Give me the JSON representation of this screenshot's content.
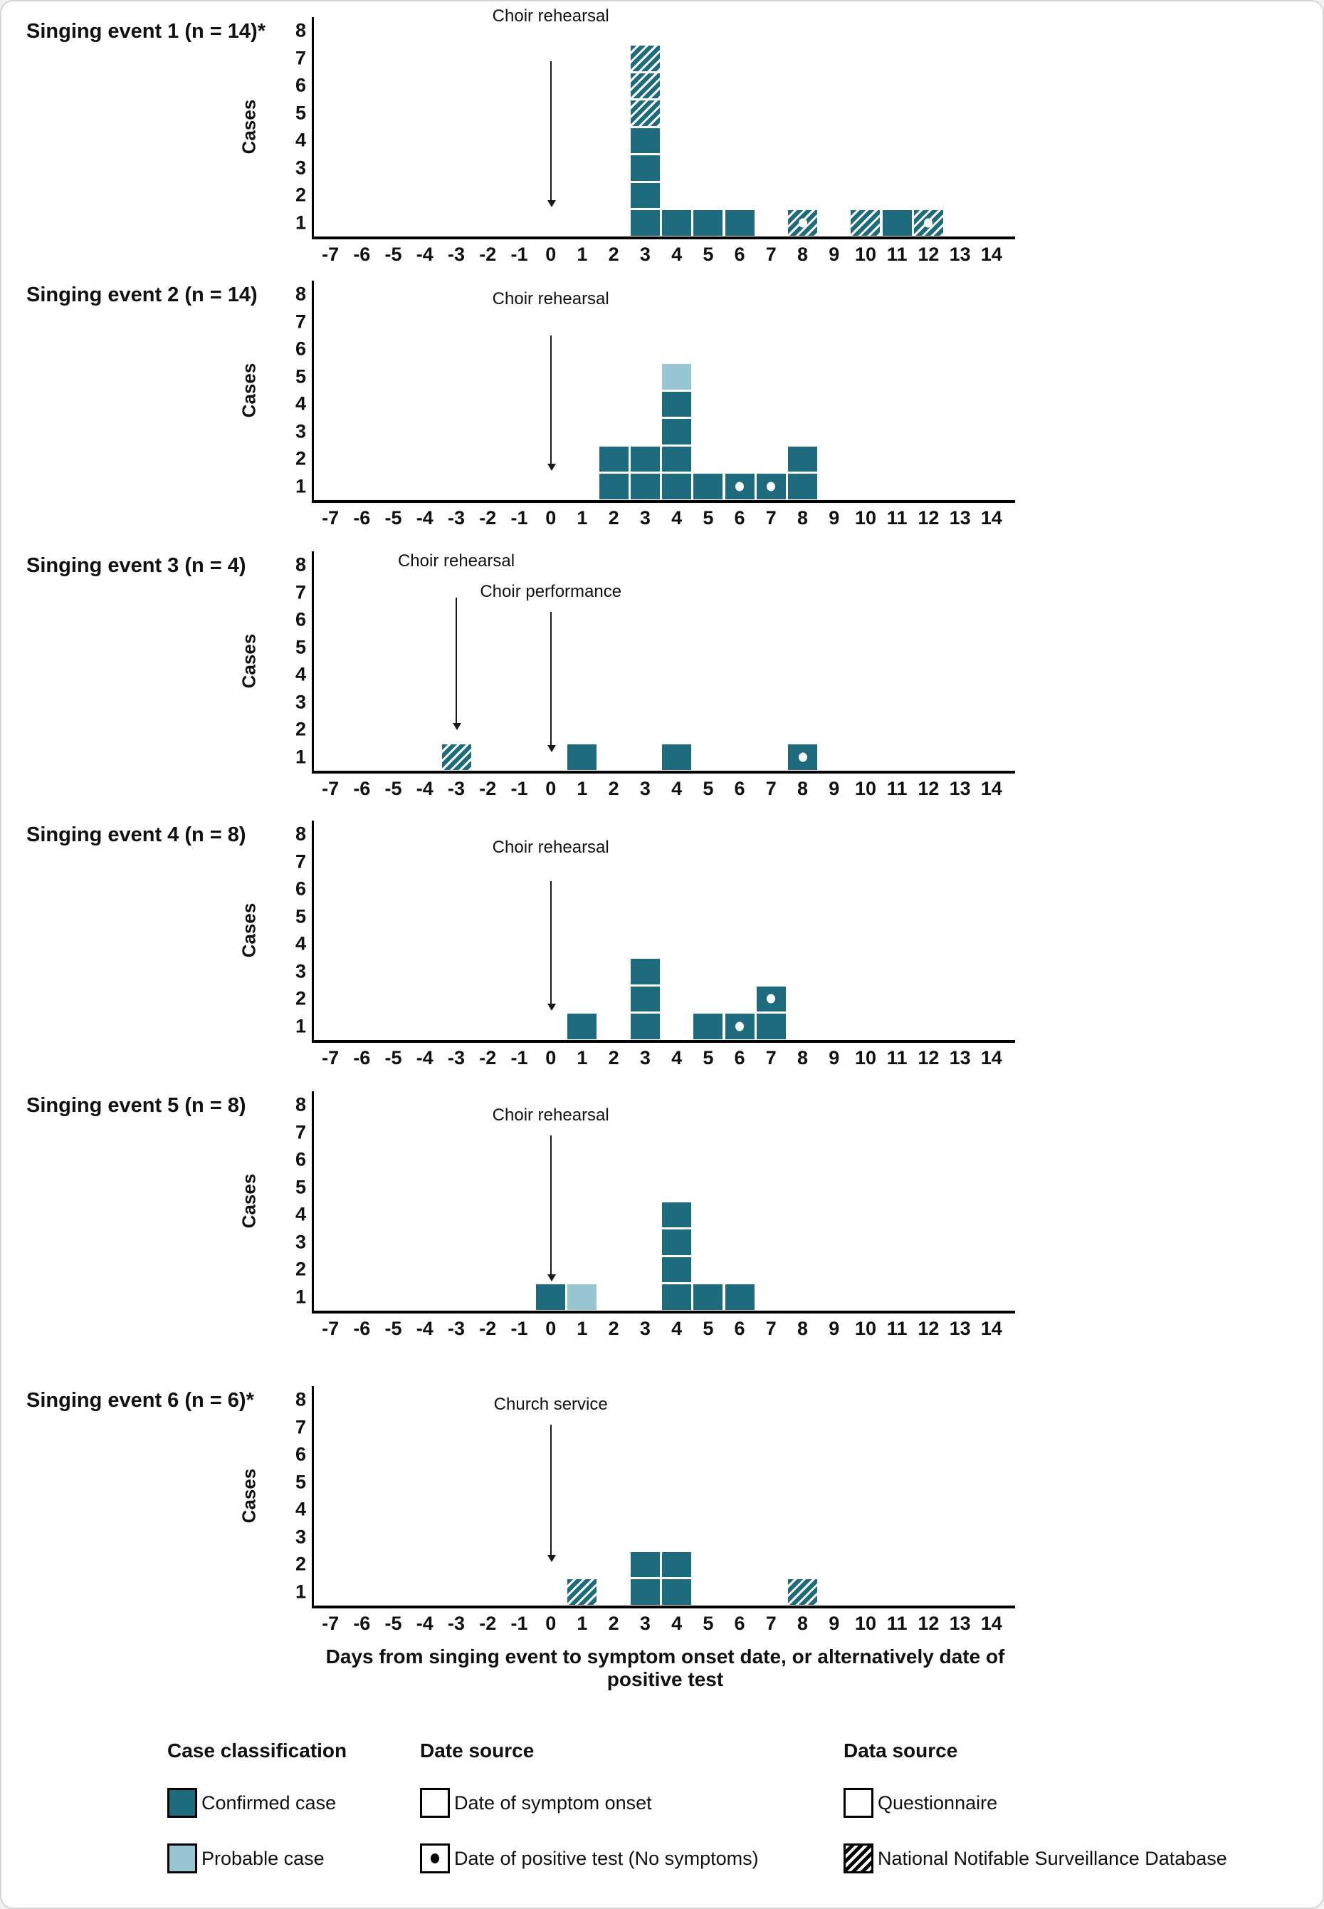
{
  "figure": {
    "xlabel": "Days from singing event to symptom onset date, or alternatively date of positive test",
    "ylabel": "Cases",
    "yticks": [
      "1",
      "2",
      "3",
      "4",
      "5",
      "6",
      "7",
      "8"
    ],
    "xticks": [
      "-7",
      "-6",
      "-5",
      "-4",
      "-3",
      "-2",
      "-1",
      "0",
      "1",
      "2",
      "3",
      "4",
      "5",
      "6",
      "7",
      "8",
      "9",
      "10",
      "11",
      "12",
      "13",
      "14"
    ],
    "x_range": [
      -7,
      14
    ],
    "y_range": [
      0,
      8
    ],
    "grid": false
  },
  "colors": {
    "confirmed": "#1e6b7e",
    "probable": "#95c6d2",
    "axis": "#000000",
    "hatch_stripe": "#ffffff"
  },
  "cell_codes": {
    "c": "confirmed case (questionnaire, symptom onset)",
    "p": "probable case",
    "h": "confirmed case (National Notifable Surveillance Database, hatched)",
    "*": "suffix = date of positive test (no symptoms), shown as dot"
  },
  "chart_data": [
    {
      "type": "bar",
      "title": "Singing event  1 (n = 14)*",
      "n": 14,
      "annotations": [
        {
          "label": "Choir rehearsal",
          "day": 0,
          "label_y": 8.0,
          "arrow_top": 6.4,
          "arrow_tip": 1.1
        }
      ],
      "bars": {
        "3": [
          "c",
          "c",
          "c",
          "c",
          "h",
          "h",
          "h"
        ],
        "4": [
          "c"
        ],
        "5": [
          "c"
        ],
        "6": [
          "c"
        ],
        "8": [
          "h*"
        ],
        "10": [
          "h"
        ],
        "11": [
          "c"
        ],
        "12": [
          "h*"
        ]
      }
    },
    {
      "type": "bar",
      "title": "Singing event 2 (n = 14)",
      "n": 14,
      "annotations": [
        {
          "label": "Choir rehearsal",
          "day": 0,
          "label_y": 7.3,
          "arrow_top": 6.0,
          "arrow_tip": 1.1
        }
      ],
      "bars": {
        "2": [
          "c",
          "c"
        ],
        "3": [
          "c",
          "c"
        ],
        "4": [
          "c",
          "c",
          "c",
          "c",
          "p"
        ],
        "5": [
          "c"
        ],
        "6": [
          "c*"
        ],
        "7": [
          "c*"
        ],
        "8": [
          "c",
          "c"
        ]
      }
    },
    {
      "type": "bar",
      "title": "Singing event 3 (n = 4)",
      "n": 4,
      "annotations": [
        {
          "label": "Choir rehearsal",
          "day": -3,
          "label_y": 7.6,
          "arrow_top": 6.3,
          "arrow_tip": 1.5
        },
        {
          "label": "Choir performance",
          "day": 0,
          "label_y": 6.5,
          "arrow_top": 5.8,
          "arrow_tip": 0.7
        }
      ],
      "bars": {
        "-3": [
          "h"
        ],
        "1": [
          "c"
        ],
        "4": [
          "c"
        ],
        "8": [
          "c*"
        ]
      }
    },
    {
      "type": "bar",
      "title": "Singing event 4 (n = 8)",
      "n": 8,
      "annotations": [
        {
          "label": "Choir rehearsal",
          "day": 0,
          "label_y": 7.0,
          "arrow_top": 5.8,
          "arrow_tip": 1.1
        }
      ],
      "bars": {
        "1": [
          "c"
        ],
        "3": [
          "c",
          "c",
          "c"
        ],
        "5": [
          "c"
        ],
        "6": [
          "c*"
        ],
        "7": [
          "c",
          "c*"
        ]
      }
    },
    {
      "type": "bar",
      "title": "Singing event 5 (n = 8)",
      "n": 8,
      "annotations": [
        {
          "label": "Choir rehearsal",
          "day": 0,
          "label_y": 7.1,
          "arrow_top": 6.4,
          "arrow_tip": 1.1
        }
      ],
      "bars": {
        "0": [
          "c"
        ],
        "1": [
          "p"
        ],
        "4": [
          "c",
          "c",
          "c",
          "c"
        ],
        "5": [
          "c"
        ],
        "6": [
          "c"
        ]
      }
    },
    {
      "type": "bar",
      "title": "Singing event 6 (n = 6)*",
      "n": 6,
      "annotations": [
        {
          "label": "Church service",
          "day": 0,
          "label_y": 7.3,
          "arrow_top": 6.6,
          "arrow_tip": 1.6
        }
      ],
      "bars": {
        "1": [
          "h"
        ],
        "3": [
          "c",
          "c"
        ],
        "4": [
          "c",
          "c"
        ],
        "8": [
          "h"
        ]
      }
    }
  ],
  "legend": {
    "groups": [
      {
        "title": "Case classification",
        "items": [
          {
            "label": "Confirmed case",
            "swatch": "confirmed"
          },
          {
            "label": "Probable case",
            "swatch": "probable"
          }
        ]
      },
      {
        "title": "Date source",
        "items": [
          {
            "label": "Date of symptom onset",
            "swatch": "empty"
          },
          {
            "label": "Date of positive test (No symptoms)",
            "swatch": "dot"
          }
        ]
      },
      {
        "title": "Data source",
        "items": [
          {
            "label": "Questionnaire",
            "swatch": "empty"
          },
          {
            "label": "National Notifable Surveillance Database",
            "swatch": "hatch-black"
          }
        ]
      }
    ]
  }
}
